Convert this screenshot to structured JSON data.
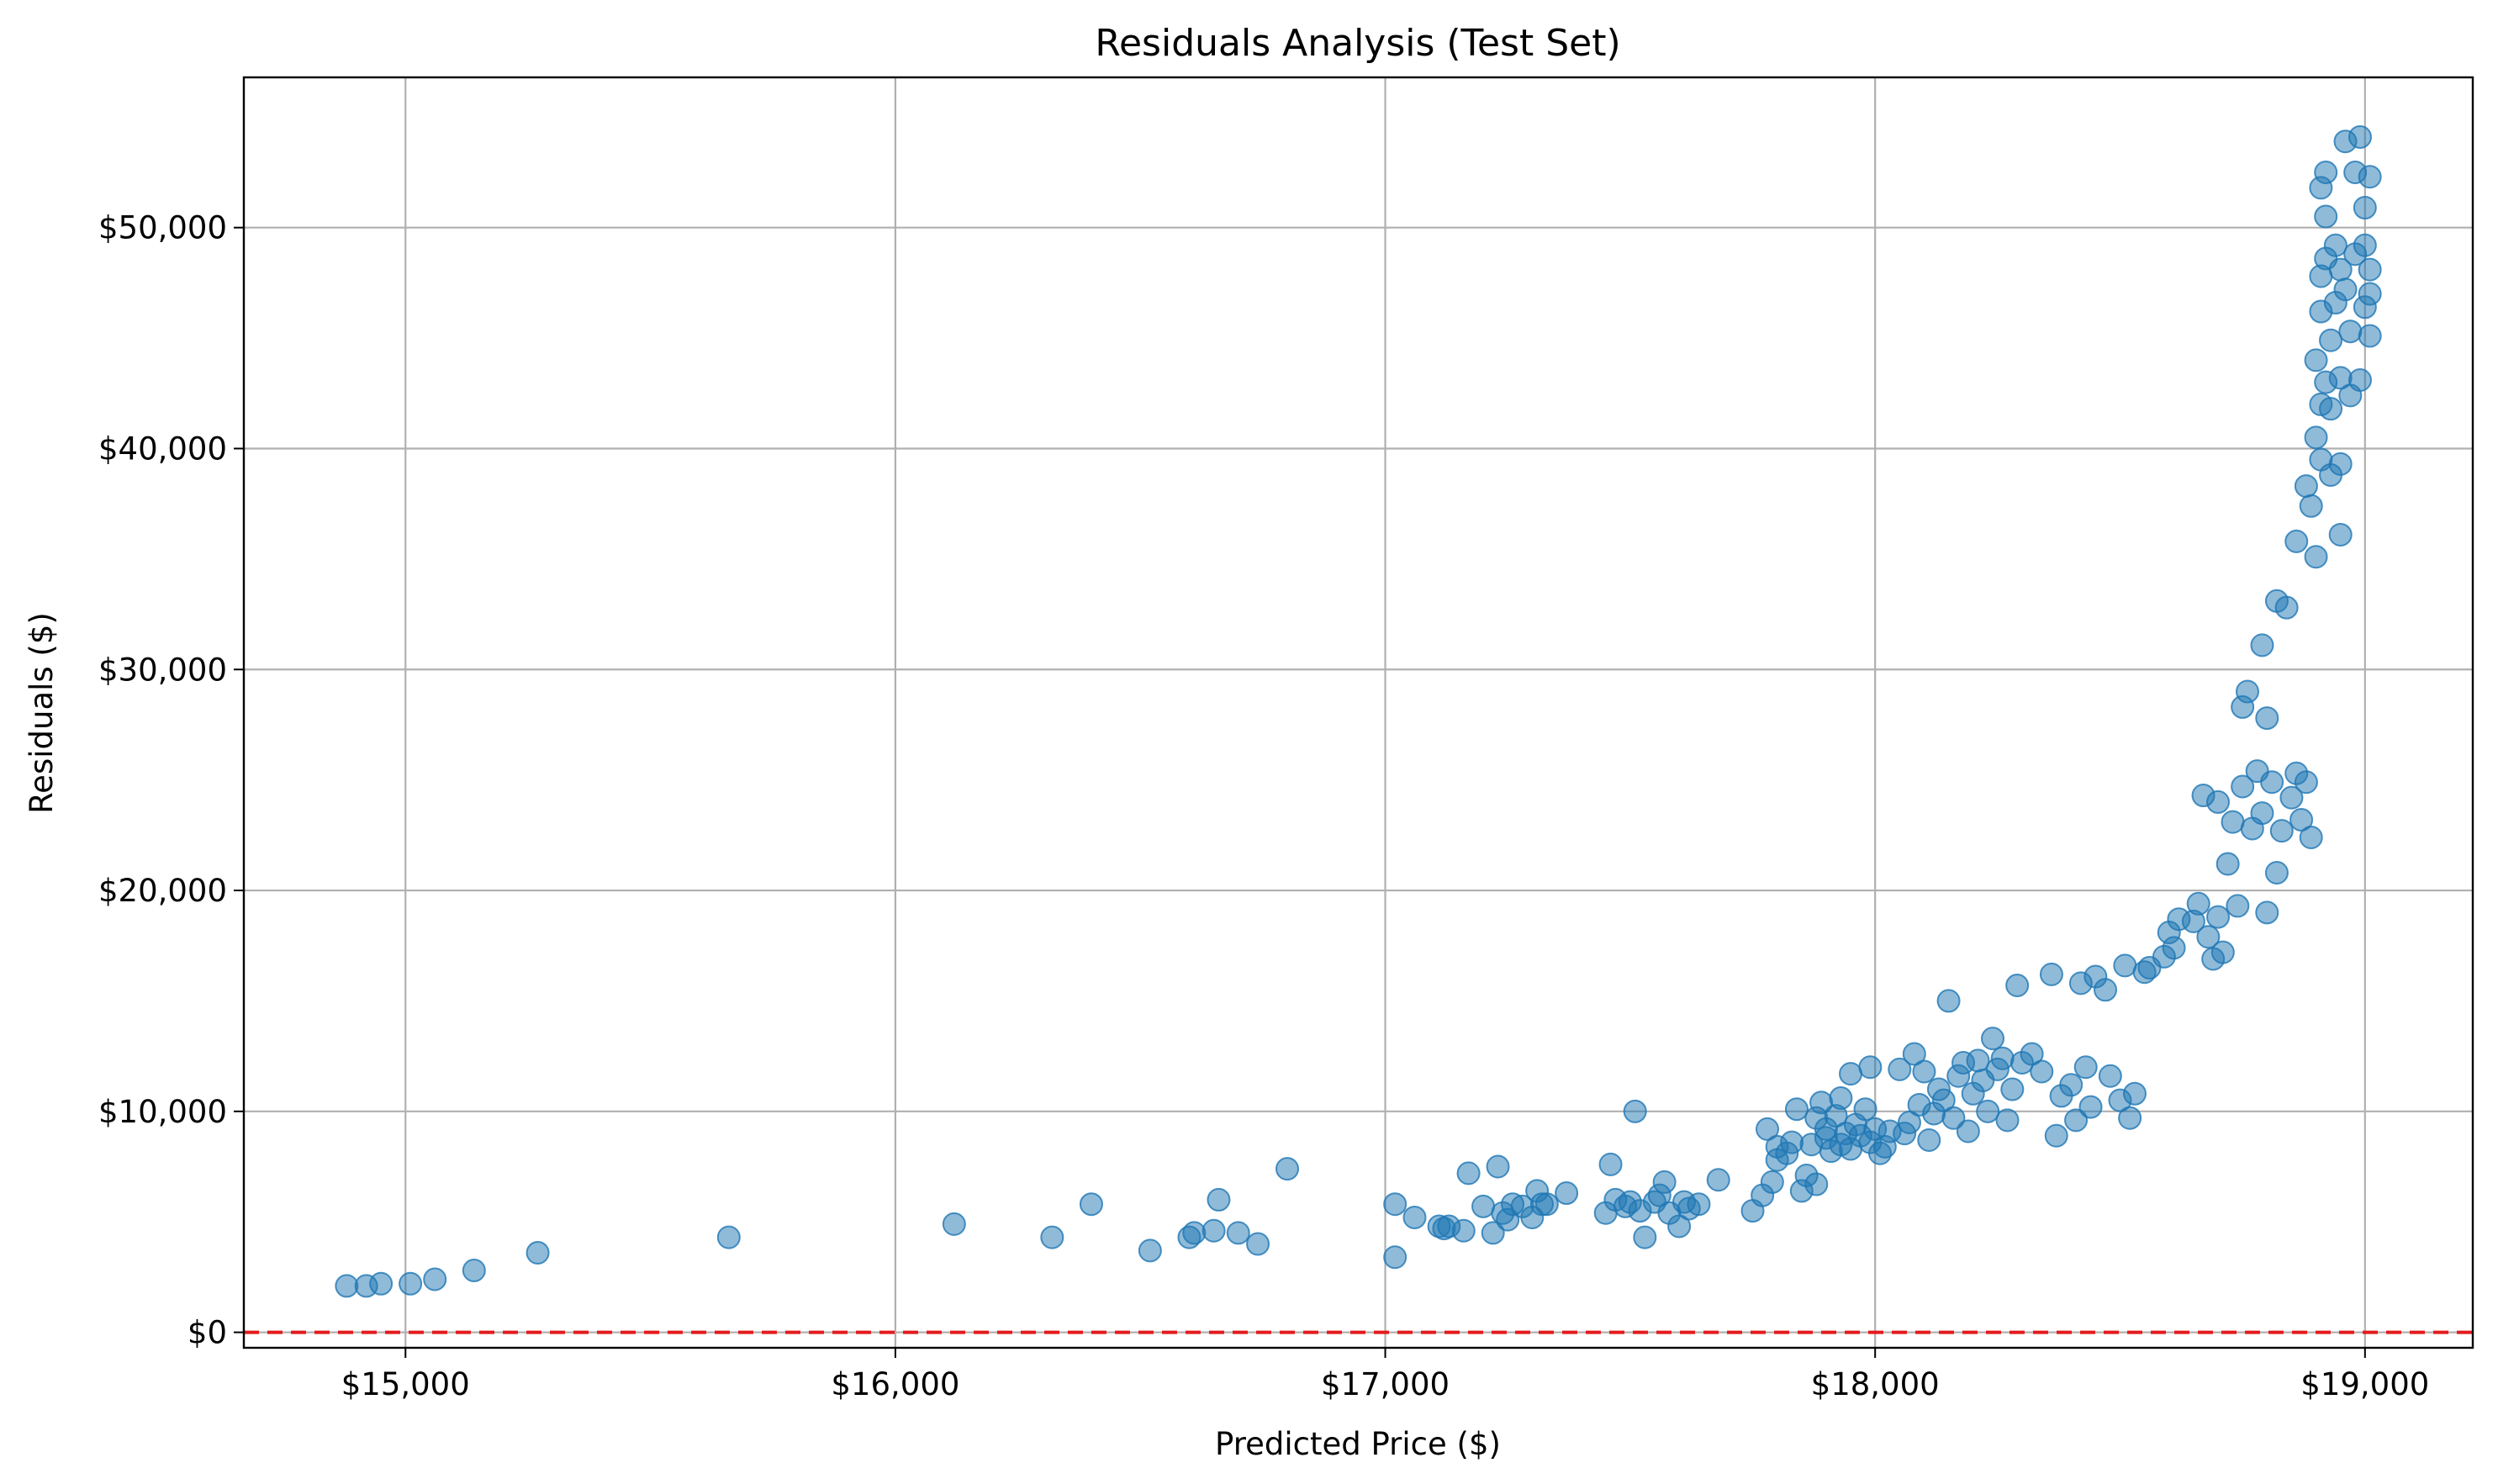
{
  "chart_data": {
    "type": "scatter",
    "title": "Residuals Analysis (Test Set)",
    "xlabel": "Predicted Price ($)",
    "ylabel": "Residuals ($)",
    "xlim": [
      14670,
      19220
    ],
    "ylim": [
      -700,
      56800
    ],
    "xticks": [
      15000,
      16000,
      17000,
      18000,
      19000
    ],
    "xtick_labels": [
      "$15,000",
      "$16,000",
      "$17,000",
      "$18,000",
      "$19,000"
    ],
    "yticks": [
      0,
      10000,
      20000,
      30000,
      40000,
      50000
    ],
    "ytick_labels": [
      "$0",
      "$10,000",
      "$20,000",
      "$30,000",
      "$40,000",
      "$50,000"
    ],
    "grid": true,
    "reference_line": {
      "y": 0,
      "color": "#e41a1c",
      "style": "dashed"
    },
    "marker_color": "#1f77b4",
    "points": [
      [
        14880,
        2100
      ],
      [
        14920,
        2100
      ],
      [
        14950,
        2200
      ],
      [
        15010,
        2200
      ],
      [
        15060,
        2400
      ],
      [
        15140,
        2800
      ],
      [
        15270,
        3600
      ],
      [
        15660,
        4300
      ],
      [
        16120,
        4900
      ],
      [
        16320,
        4300
      ],
      [
        16400,
        5800
      ],
      [
        16520,
        3700
      ],
      [
        16600,
        4300
      ],
      [
        16610,
        4500
      ],
      [
        16650,
        4600
      ],
      [
        16660,
        6000
      ],
      [
        16700,
        4500
      ],
      [
        16740,
        4000
      ],
      [
        16800,
        7400
      ],
      [
        17020,
        5800
      ],
      [
        17020,
        3400
      ],
      [
        17060,
        5200
      ],
      [
        17110,
        4800
      ],
      [
        17120,
        4700
      ],
      [
        17130,
        4800
      ],
      [
        17160,
        4600
      ],
      [
        17170,
        7200
      ],
      [
        17200,
        5700
      ],
      [
        17220,
        4500
      ],
      [
        17230,
        7500
      ],
      [
        17240,
        5400
      ],
      [
        17250,
        5100
      ],
      [
        17260,
        5800
      ],
      [
        17280,
        5700
      ],
      [
        17300,
        5200
      ],
      [
        17310,
        6400
      ],
      [
        17320,
        5800
      ],
      [
        17330,
        5800
      ],
      [
        17370,
        6300
      ],
      [
        17450,
        5400
      ],
      [
        17460,
        7600
      ],
      [
        17470,
        6000
      ],
      [
        17490,
        5700
      ],
      [
        17500,
        5900
      ],
      [
        17510,
        10000
      ],
      [
        17520,
        5500
      ],
      [
        17530,
        4300
      ],
      [
        17550,
        5900
      ],
      [
        17560,
        6200
      ],
      [
        17570,
        6800
      ],
      [
        17580,
        5400
      ],
      [
        17600,
        4800
      ],
      [
        17610,
        5900
      ],
      [
        17620,
        5600
      ],
      [
        17640,
        5800
      ],
      [
        17680,
        6900
      ],
      [
        17750,
        5500
      ],
      [
        17770,
        6200
      ],
      [
        17780,
        9200
      ],
      [
        17790,
        6800
      ],
      [
        17800,
        7800
      ],
      [
        17800,
        8400
      ],
      [
        17820,
        8100
      ],
      [
        17830,
        8600
      ],
      [
        17840,
        10100
      ],
      [
        17850,
        6400
      ],
      [
        17860,
        7100
      ],
      [
        17870,
        8500
      ],
      [
        17880,
        6700
      ],
      [
        17880,
        9700
      ],
      [
        17890,
        10400
      ],
      [
        17900,
        8800
      ],
      [
        17900,
        9200
      ],
      [
        17910,
        8200
      ],
      [
        17920,
        9800
      ],
      [
        17930,
        10600
      ],
      [
        17930,
        8500
      ],
      [
        17940,
        9000
      ],
      [
        17950,
        11700
      ],
      [
        17950,
        8300
      ],
      [
        17960,
        9400
      ],
      [
        17970,
        8900
      ],
      [
        17980,
        10100
      ],
      [
        17990,
        12000
      ],
      [
        17990,
        8600
      ],
      [
        18000,
        9200
      ],
      [
        18010,
        8100
      ],
      [
        18020,
        8400
      ],
      [
        18030,
        9100
      ],
      [
        18050,
        11900
      ],
      [
        18060,
        9000
      ],
      [
        18070,
        9500
      ],
      [
        18080,
        12600
      ],
      [
        18090,
        10300
      ],
      [
        18100,
        11800
      ],
      [
        18110,
        8700
      ],
      [
        18120,
        9900
      ],
      [
        18130,
        11000
      ],
      [
        18140,
        10500
      ],
      [
        18150,
        15000
      ],
      [
        18160,
        9700
      ],
      [
        18170,
        11600
      ],
      [
        18180,
        12200
      ],
      [
        18190,
        9100
      ],
      [
        18200,
        10800
      ],
      [
        18210,
        12300
      ],
      [
        18220,
        11400
      ],
      [
        18230,
        10000
      ],
      [
        18240,
        13300
      ],
      [
        18250,
        11900
      ],
      [
        18260,
        12400
      ],
      [
        18270,
        9600
      ],
      [
        18280,
        11000
      ],
      [
        18290,
        15700
      ],
      [
        18300,
        12200
      ],
      [
        18320,
        12600
      ],
      [
        18340,
        11800
      ],
      [
        18360,
        16200
      ],
      [
        18370,
        8900
      ],
      [
        18380,
        10700
      ],
      [
        18400,
        11200
      ],
      [
        18410,
        9600
      ],
      [
        18420,
        15800
      ],
      [
        18430,
        12000
      ],
      [
        18440,
        10200
      ],
      [
        18450,
        16100
      ],
      [
        18470,
        15500
      ],
      [
        18480,
        11600
      ],
      [
        18500,
        10500
      ],
      [
        18510,
        16600
      ],
      [
        18520,
        9700
      ],
      [
        18530,
        10800
      ],
      [
        18550,
        16300
      ],
      [
        18560,
        16500
      ],
      [
        18590,
        17000
      ],
      [
        18600,
        18100
      ],
      [
        18610,
        17400
      ],
      [
        18620,
        18700
      ],
      [
        18650,
        18600
      ],
      [
        18660,
        19400
      ],
      [
        18670,
        24300
      ],
      [
        18680,
        17900
      ],
      [
        18690,
        16900
      ],
      [
        18700,
        18800
      ],
      [
        18700,
        24000
      ],
      [
        18710,
        17200
      ],
      [
        18720,
        21200
      ],
      [
        18730,
        23100
      ],
      [
        18740,
        19300
      ],
      [
        18750,
        28300
      ],
      [
        18750,
        24700
      ],
      [
        18760,
        29000
      ],
      [
        18770,
        22800
      ],
      [
        18780,
        25400
      ],
      [
        18790,
        31100
      ],
      [
        18790,
        23500
      ],
      [
        18800,
        27800
      ],
      [
        18800,
        19000
      ],
      [
        18810,
        24900
      ],
      [
        18820,
        33100
      ],
      [
        18820,
        20800
      ],
      [
        18830,
        22700
      ],
      [
        18840,
        32800
      ],
      [
        18850,
        24200
      ],
      [
        18860,
        25300
      ],
      [
        18860,
        35800
      ],
      [
        18870,
        23200
      ],
      [
        18880,
        38300
      ],
      [
        18880,
        24900
      ],
      [
        18890,
        37400
      ],
      [
        18890,
        22400
      ],
      [
        18900,
        40500
      ],
      [
        18900,
        44000
      ],
      [
        18900,
        35100
      ],
      [
        18910,
        47800
      ],
      [
        18910,
        42000
      ],
      [
        18910,
        39500
      ],
      [
        18910,
        46200
      ],
      [
        18910,
        51800
      ],
      [
        18920,
        48600
      ],
      [
        18920,
        50500
      ],
      [
        18920,
        43000
      ],
      [
        18920,
        52500
      ],
      [
        18930,
        44900
      ],
      [
        18930,
        41800
      ],
      [
        18930,
        38800
      ],
      [
        18940,
        46600
      ],
      [
        18940,
        49200
      ],
      [
        18950,
        48100
      ],
      [
        18950,
        43200
      ],
      [
        18950,
        39300
      ],
      [
        18950,
        36100
      ],
      [
        18960,
        53900
      ],
      [
        18960,
        47200
      ],
      [
        18970,
        45300
      ],
      [
        18970,
        42400
      ],
      [
        18980,
        52500
      ],
      [
        18980,
        48800
      ],
      [
        18990,
        54100
      ],
      [
        18990,
        43100
      ],
      [
        19000,
        50900
      ],
      [
        19000,
        46400
      ],
      [
        19000,
        49200
      ],
      [
        19010,
        52300
      ],
      [
        19010,
        45100
      ],
      [
        19010,
        48100
      ],
      [
        19010,
        47000
      ]
    ]
  }
}
